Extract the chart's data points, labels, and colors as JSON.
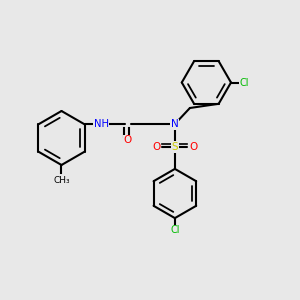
{
  "background_color": "#e8e8e8",
  "bond_color": "#000000",
  "figsize": [
    3.0,
    3.0
  ],
  "dpi": 100,
  "colors": {
    "C": "#000000",
    "N": "#0000ff",
    "O": "#ff0000",
    "S": "#cccc00",
    "Cl": "#00bb00",
    "H": "#4488aa"
  },
  "lw": 1.5,
  "lw_double": 1.2
}
